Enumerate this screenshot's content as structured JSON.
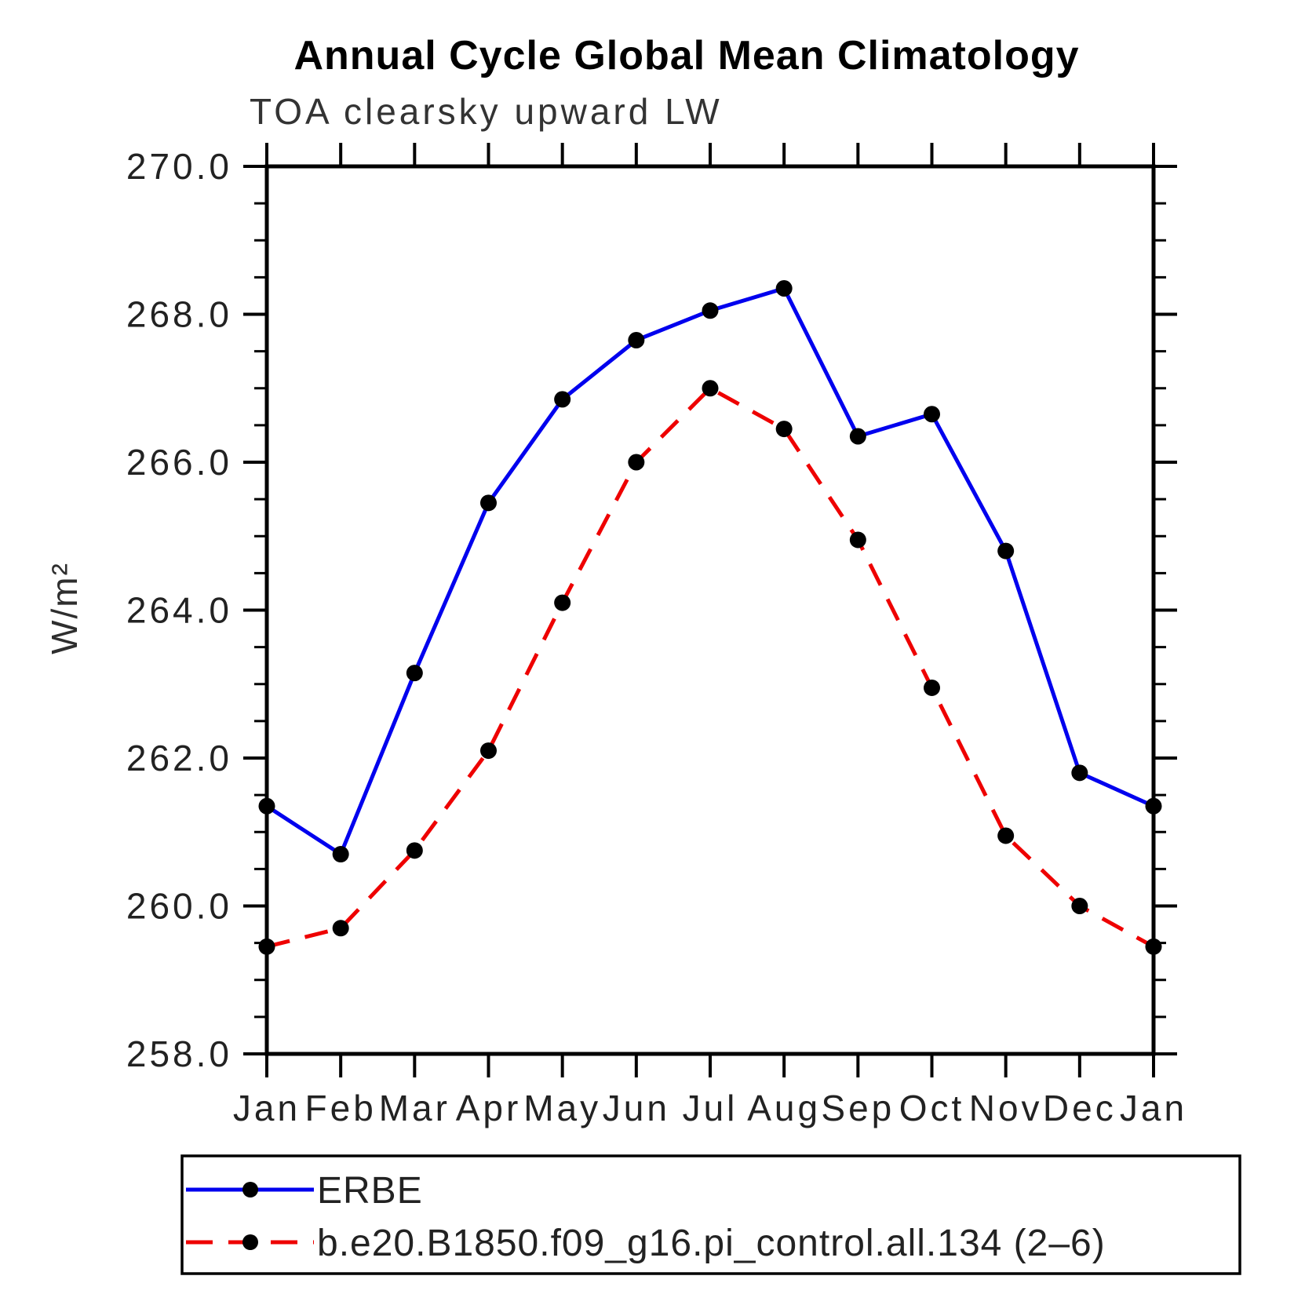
{
  "title": "Annual Cycle Global Mean Climatology",
  "subtitle": "TOA clearsky upward LW",
  "chart_data": {
    "type": "line",
    "title": "Annual Cycle Global Mean Climatology",
    "subtitle": "TOA clearsky upward LW",
    "xlabel": "",
    "ylabel": "W/m²",
    "ylim": [
      258.0,
      270.0
    ],
    "y_major_tick_labels": [
      "258.0",
      "260.0",
      "262.0",
      "264.0",
      "266.0",
      "268.0",
      "270.0"
    ],
    "y_major_tick_values": [
      258.0,
      260.0,
      262.0,
      264.0,
      266.0,
      268.0,
      270.0
    ],
    "y_minor_step": 0.5,
    "grid": false,
    "frame": "box-with-outward-ticks",
    "legend_position": "bottom-box",
    "categories": [
      "Jan",
      "Feb",
      "Mar",
      "Apr",
      "May",
      "Jun",
      "Jul",
      "Aug",
      "Sep",
      "Oct",
      "Nov",
      "Dec",
      "Jan"
    ],
    "series": [
      {
        "name": "ERBE",
        "line_color": "#0000ee",
        "line_style": "solid",
        "marker": "circle",
        "marker_color": "#000000",
        "values": [
          261.35,
          260.7,
          263.15,
          265.45,
          266.85,
          267.65,
          268.05,
          268.35,
          266.35,
          266.65,
          264.8,
          261.8,
          261.35
        ]
      },
      {
        "name": "b.e20.B1850.f09_g16.pi_control.all.134 (2–6)",
        "line_color": "#ee0000",
        "line_style": "dashed",
        "marker": "circle",
        "marker_color": "#000000",
        "values": [
          259.45,
          259.7,
          260.75,
          262.1,
          264.1,
          266.0,
          267.0,
          266.45,
          264.95,
          262.95,
          260.95,
          260.0,
          259.45
        ]
      }
    ]
  },
  "colors": {
    "axis": "#000000",
    "blue_series": "#0000ee",
    "red_series": "#ee0000",
    "marker": "#000000",
    "background": "#ffffff"
  }
}
